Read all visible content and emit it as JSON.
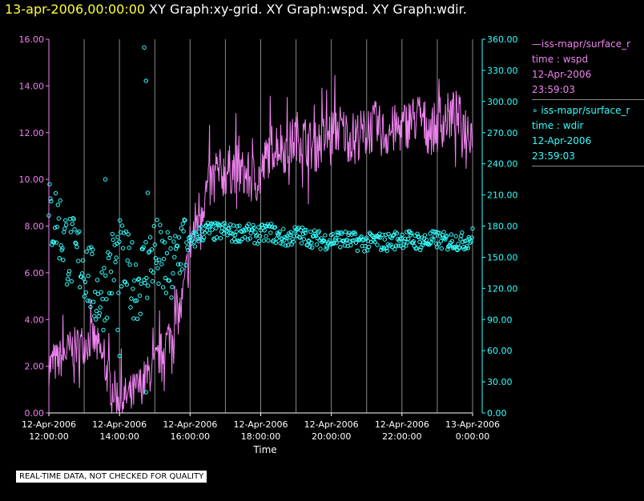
{
  "header": {
    "date": "13-apr-2006,00:00:00",
    "graphs": " XY Graph:xy-grid.  XY Graph:wspd.  XY Graph:wdir."
  },
  "legend": {
    "wspd": {
      "line1": "iss-mapr/surface_r",
      "line2": "time : wspd",
      "line3": "12-Apr-2006",
      "line4": "23:59:03",
      "color": "#ee82ee"
    },
    "wdir": {
      "line1": "iss-mapr/surface_r",
      "line2": "time : wdir",
      "line3": "12-Apr-2006",
      "line4": "23:59:03",
      "color": "#33ffff"
    }
  },
  "footer_note": "REAL-TIME DATA, NOT CHECKED FOR QUALITY",
  "chart_data": {
    "type": "line",
    "xlabel": "Time",
    "x_range_hours": [
      12,
      24
    ],
    "x_ticks": [
      {
        "date": "12-Apr-2006",
        "time": "12:00:00"
      },
      {
        "date": "12-Apr-2006",
        "time": "14:00:00"
      },
      {
        "date": "12-Apr-2006",
        "time": "16:00:00"
      },
      {
        "date": "12-Apr-2006",
        "time": "18:00:00"
      },
      {
        "date": "12-Apr-2006",
        "time": "20:00:00"
      },
      {
        "date": "12-Apr-2006",
        "time": "22:00:00"
      },
      {
        "date": "13-Apr-2006",
        "time": "0:00:00"
      }
    ],
    "left_axis": {
      "ylim": [
        0,
        16
      ],
      "ticks": [
        "0.00",
        "2.00",
        "4.00",
        "6.00",
        "8.00",
        "10.00",
        "12.00",
        "14.00",
        "16.00"
      ],
      "color": "#ee82ee"
    },
    "right_axis": {
      "ylim": [
        0,
        360
      ],
      "ticks": [
        "0.00",
        "30.00",
        "60.00",
        "90.00",
        "120.00",
        "150.00",
        "180.00",
        "210.00",
        "240.00",
        "270.00",
        "300.00",
        "330.00",
        "360.00"
      ],
      "color": "#33ffff"
    },
    "grid": "vertical",
    "series": [
      {
        "name": "iss-mapr/surface_r time : wspd",
        "axis": "left",
        "style": "line",
        "color": "#ee82ee",
        "x_hours": [
          12.0,
          12.25,
          12.5,
          12.75,
          13.0,
          13.25,
          13.5,
          13.75,
          14.0,
          14.25,
          14.5,
          14.75,
          15.0,
          15.25,
          15.5,
          15.75,
          16.0,
          16.25,
          16.5,
          16.75,
          17.0,
          17.25,
          17.5,
          17.75,
          18.0,
          18.25,
          18.5,
          18.75,
          19.0,
          19.25,
          19.5,
          19.75,
          20.0,
          20.25,
          20.5,
          20.75,
          21.0,
          21.25,
          21.5,
          21.75,
          22.0,
          22.25,
          22.5,
          22.75,
          23.0,
          23.25,
          23.5,
          23.75,
          24.0
        ],
        "values": [
          2.0,
          2.2,
          2.6,
          2.8,
          3.0,
          3.2,
          2.4,
          1.2,
          0.6,
          0.7,
          1.0,
          1.5,
          2.0,
          2.8,
          3.6,
          4.5,
          7.2,
          8.6,
          9.6,
          10.2,
          10.3,
          10.5,
          10.2,
          10.0,
          10.1,
          11.3,
          11.6,
          11.2,
          11.9,
          11.7,
          11.3,
          11.7,
          12.0,
          12.2,
          11.8,
          11.9,
          12.0,
          12.3,
          11.9,
          12.1,
          12.2,
          12.5,
          12.7,
          12.1,
          12.2,
          12.6,
          12.8,
          12.3,
          12.1
        ]
      },
      {
        "name": "iss-mapr/surface_r time : wdir",
        "axis": "right",
        "style": "scatter",
        "color": "#33ffff",
        "x_hours": [
          12.0,
          12.25,
          12.5,
          12.75,
          13.0,
          13.25,
          13.5,
          13.75,
          14.0,
          14.25,
          14.5,
          14.75,
          15.0,
          15.25,
          15.5,
          15.75,
          16.0,
          16.25,
          16.5,
          16.75,
          17.0,
          17.25,
          17.5,
          17.75,
          18.0,
          18.25,
          18.5,
          18.75,
          19.0,
          19.25,
          19.5,
          19.75,
          20.0,
          20.25,
          20.5,
          20.75,
          21.0,
          21.25,
          21.5,
          21.75,
          22.0,
          22.25,
          22.5,
          22.75,
          23.0,
          23.25,
          23.5,
          23.75,
          24.0
        ],
        "values": [
          188,
          186,
          160,
          150,
          145,
          120,
          112,
          140,
          150,
          135,
          125,
          140,
          155,
          140,
          135,
          165,
          162,
          172,
          176,
          174,
          176,
          172,
          175,
          172,
          172,
          175,
          170,
          168,
          172,
          170,
          168,
          166,
          167,
          168,
          166,
          165,
          164,
          166,
          164,
          166,
          168,
          167,
          165,
          166,
          167,
          165,
          166,
          165,
          170
        ],
        "outliers": [
          {
            "x": 14.7,
            "y": 352
          },
          {
            "x": 14.75,
            "y": 320
          },
          {
            "x": 13.6,
            "y": 225
          },
          {
            "x": 14.8,
            "y": 212
          },
          {
            "x": 14.75,
            "y": 20
          },
          {
            "x": 13.95,
            "y": 80
          },
          {
            "x": 14.0,
            "y": 55
          }
        ]
      }
    ]
  }
}
